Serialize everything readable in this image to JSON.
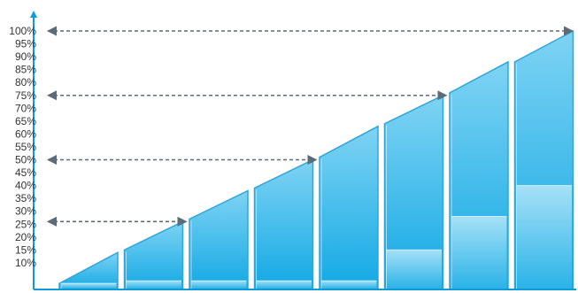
{
  "colors": {
    "axis": "#0e9ad9",
    "bar_top": "#7fd3f3",
    "bar_bottom": "#12a8e4",
    "bar_edge": "#2fa6da",
    "band_top": "#b3e5f8",
    "band_bottom": "#2db4e8",
    "guide": "#5b6b78"
  },
  "chart_data": {
    "type": "bar",
    "title": "",
    "xlabel": "",
    "ylabel": "",
    "ylim": [
      0,
      100
    ],
    "grid": false,
    "legend": "none",
    "y_ticks": [
      "10%",
      "15%",
      "20%",
      "25%",
      "30%",
      "35%",
      "40%",
      "45%",
      "50%",
      "55%",
      "60%",
      "65%",
      "70%",
      "75%",
      "80%",
      "85%",
      "90%",
      "95%",
      "100%"
    ],
    "y_tick_values": [
      10,
      15,
      20,
      25,
      30,
      35,
      40,
      45,
      50,
      55,
      60,
      65,
      70,
      75,
      80,
      85,
      90,
      95,
      100
    ],
    "bars": [
      {
        "start": 2,
        "end": 14,
        "band": 2
      },
      {
        "start": 15,
        "end": 26,
        "band": 3
      },
      {
        "start": 27,
        "end": 38,
        "band": 3
      },
      {
        "start": 39,
        "end": 50,
        "band": 3
      },
      {
        "start": 51,
        "end": 63,
        "band": 3
      },
      {
        "start": 64,
        "end": 75,
        "band": 15
      },
      {
        "start": 76,
        "end": 88,
        "band": 28
      },
      {
        "start": 88,
        "end": 100,
        "band": 40
      }
    ],
    "guides": [
      {
        "value": 26,
        "from": "axis",
        "to_bar": 1
      },
      {
        "value": 50,
        "from": "axis",
        "to_bar": 3
      },
      {
        "value": 75,
        "from": "axis",
        "to_bar": 5
      },
      {
        "value": 100,
        "from": "axis",
        "to_bar": 7
      }
    ]
  }
}
